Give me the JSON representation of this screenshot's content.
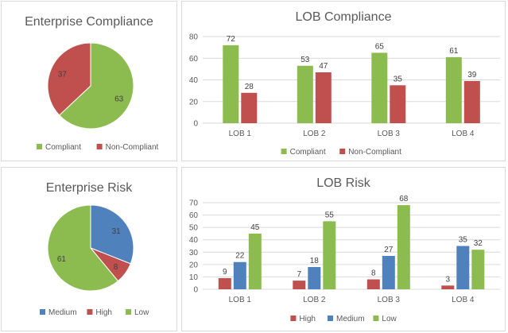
{
  "chart_data": [
    {
      "type": "pie",
      "title": "Enterprise Compliance",
      "categories": [
        "Compliant",
        "Non-Compliant"
      ],
      "values": [
        63,
        37
      ],
      "colors": [
        "#8cbc50",
        "#c0504d"
      ],
      "legend": "bottom"
    },
    {
      "type": "bar",
      "title": "LOB Compliance",
      "categories": [
        "LOB 1",
        "LOB 2",
        "LOB 3",
        "LOB 4"
      ],
      "series": [
        {
          "name": "Compliant",
          "values": [
            72,
            53,
            65,
            61
          ],
          "color": "#8cbc50"
        },
        {
          "name": "Non-Compliant",
          "values": [
            28,
            47,
            35,
            39
          ],
          "color": "#c0504d"
        }
      ],
      "ylim": [
        0,
        80
      ],
      "yticks": [
        "0",
        "20",
        "40",
        "60",
        "80"
      ],
      "grid": true,
      "legend": "bottom"
    },
    {
      "type": "pie",
      "title": "Enterprise Risk",
      "categories": [
        "Medium",
        "High",
        "Low"
      ],
      "values": [
        31,
        8,
        61
      ],
      "colors": [
        "#4f81bd",
        "#c0504d",
        "#8cbc50"
      ],
      "legend": "bottom"
    },
    {
      "type": "bar",
      "title": "LOB Risk",
      "categories": [
        "LOB 1",
        "LOB 2",
        "LOB 3",
        "LOB 4"
      ],
      "series": [
        {
          "name": "High",
          "values": [
            9,
            7,
            8,
            3
          ],
          "color": "#c0504d"
        },
        {
          "name": "Medium",
          "values": [
            22,
            18,
            27,
            35
          ],
          "color": "#4f81bd"
        },
        {
          "name": "Low",
          "values": [
            45,
            55,
            68,
            32
          ],
          "color": "#8cbc50"
        }
      ],
      "ylim": [
        0,
        70
      ],
      "yticks": [
        "0",
        "10",
        "20",
        "30",
        "40",
        "50",
        "60",
        "70"
      ],
      "grid": true,
      "legend": "bottom"
    }
  ]
}
